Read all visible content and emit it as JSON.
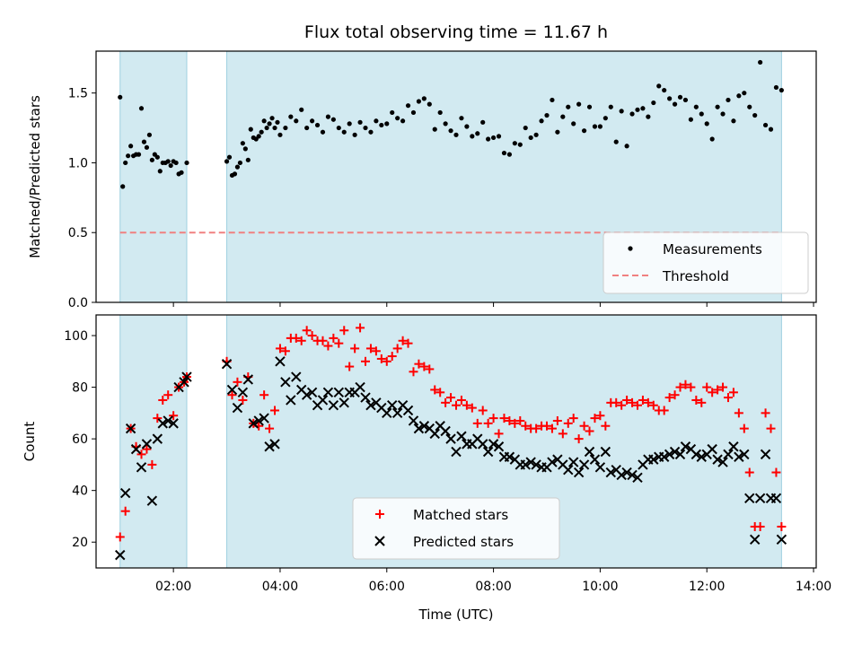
{
  "chart_data": [
    {
      "type": "scatter",
      "title": "Flux total observing time = 11.67 h",
      "ylabel": "Matched/Predicted stars",
      "xlabel": "",
      "ylim": [
        0,
        1.8
      ],
      "yticks": [
        "0.0",
        "0.5",
        "1.0",
        "1.5"
      ],
      "observing_windows": [
        [
          1.0,
          2.25
        ],
        [
          3.0,
          13.4
        ]
      ],
      "threshold": 0.5,
      "legend": {
        "placement": "lower-right",
        "entries": [
          "Measurements",
          "Threshold"
        ]
      },
      "series": [
        {
          "name": "Measurements",
          "x": [
            1.0,
            1.05,
            1.1,
            1.15,
            1.2,
            1.25,
            1.3,
            1.35,
            1.4,
            1.45,
            1.5,
            1.55,
            1.6,
            1.65,
            1.7,
            1.75,
            1.8,
            1.85,
            1.9,
            1.95,
            2.0,
            2.05,
            2.1,
            2.15,
            2.25,
            3.0,
            3.05,
            3.1,
            3.15,
            3.2,
            3.25,
            3.3,
            3.35,
            3.4,
            3.45,
            3.5,
            3.55,
            3.6,
            3.65,
            3.7,
            3.75,
            3.8,
            3.85,
            3.9,
            3.95,
            4.0,
            4.1,
            4.2,
            4.3,
            4.4,
            4.5,
            4.6,
            4.7,
            4.8,
            4.9,
            5.0,
            5.1,
            5.2,
            5.3,
            5.4,
            5.5,
            5.6,
            5.7,
            5.8,
            5.9,
            6.0,
            6.1,
            6.2,
            6.3,
            6.4,
            6.5,
            6.6,
            6.7,
            6.8,
            6.9,
            7.0,
            7.1,
            7.2,
            7.3,
            7.4,
            7.5,
            7.6,
            7.7,
            7.8,
            7.9,
            8.0,
            8.1,
            8.2,
            8.3,
            8.4,
            8.5,
            8.6,
            8.7,
            8.8,
            8.9,
            9.0,
            9.1,
            9.2,
            9.3,
            9.4,
            9.5,
            9.6,
            9.7,
            9.8,
            9.9,
            10.0,
            10.1,
            10.2,
            10.3,
            10.4,
            10.5,
            10.6,
            10.7,
            10.8,
            10.9,
            11.0,
            11.1,
            11.2,
            11.3,
            11.4,
            11.5,
            11.6,
            11.7,
            11.8,
            11.9,
            12.0,
            12.1,
            12.2,
            12.3,
            12.4,
            12.5,
            12.6,
            12.7,
            12.8,
            12.9,
            13.0,
            13.1,
            13.2,
            13.3,
            13.4
          ],
          "y": [
            1.47,
            0.83,
            1.0,
            1.05,
            1.12,
            1.05,
            1.06,
            1.06,
            1.39,
            1.15,
            1.11,
            1.2,
            1.02,
            1.06,
            1.04,
            0.94,
            1.0,
            1.0,
            1.01,
            0.98,
            1.01,
            1.0,
            0.92,
            0.93,
            1.0,
            1.01,
            1.04,
            0.91,
            0.92,
            0.97,
            1.0,
            1.14,
            1.1,
            1.02,
            1.24,
            1.18,
            1.17,
            1.19,
            1.22,
            1.3,
            1.25,
            1.28,
            1.32,
            1.25,
            1.29,
            1.2,
            1.25,
            1.33,
            1.3,
            1.38,
            1.25,
            1.3,
            1.27,
            1.22,
            1.33,
            1.31,
            1.25,
            1.22,
            1.28,
            1.2,
            1.29,
            1.25,
            1.22,
            1.3,
            1.27,
            1.28,
            1.36,
            1.32,
            1.3,
            1.41,
            1.36,
            1.44,
            1.46,
            1.42,
            1.24,
            1.36,
            1.28,
            1.23,
            1.2,
            1.32,
            1.26,
            1.19,
            1.21,
            1.29,
            1.17,
            1.18,
            1.19,
            1.07,
            1.06,
            1.14,
            1.13,
            1.25,
            1.18,
            1.2,
            1.3,
            1.34,
            1.45,
            1.22,
            1.33,
            1.4,
            1.28,
            1.42,
            1.23,
            1.4,
            1.26,
            1.26,
            1.32,
            1.4,
            1.15,
            1.37,
            1.12,
            1.35,
            1.38,
            1.39,
            1.33,
            1.43,
            1.55,
            1.52,
            1.46,
            1.42,
            1.47,
            1.45,
            1.31,
            1.4,
            1.35,
            1.28,
            1.17,
            1.4,
            1.35,
            1.45,
            1.3,
            1.48,
            1.5,
            1.4,
            1.34,
            1.72,
            1.27,
            1.24,
            1.54,
            1.52
          ],
          "marker": "dot",
          "color": "#000000"
        },
        {
          "name": "Threshold",
          "x": [
            1.0,
            13.4
          ],
          "y": [
            0.5,
            0.5
          ],
          "style": "dashed",
          "color": "#f08080"
        }
      ]
    },
    {
      "type": "scatter",
      "title": "",
      "xlabel": "Time (UTC)",
      "ylabel": "Count",
      "ylim": [
        10,
        108
      ],
      "yticks": [
        "20",
        "40",
        "60",
        "80",
        "100"
      ],
      "xlim": [
        0.55,
        14.05
      ],
      "xticks": [
        "02:00",
        "04:00",
        "06:00",
        "08:00",
        "10:00",
        "12:00",
        "14:00"
      ],
      "observing_windows": [
        [
          1.0,
          2.25
        ],
        [
          3.0,
          13.4
        ]
      ],
      "legend": {
        "placement": "lower-center",
        "entries": [
          "Matched stars",
          "Predicted stars"
        ]
      },
      "series": [
        {
          "name": "Matched stars",
          "marker": "plus",
          "color": "#ff0000",
          "x": [
            1.0,
            1.1,
            1.2,
            1.3,
            1.4,
            1.5,
            1.6,
            1.7,
            1.8,
            1.9,
            2.0,
            2.1,
            2.2,
            2.25,
            3.0,
            3.1,
            3.2,
            3.3,
            3.4,
            3.5,
            3.6,
            3.7,
            3.8,
            3.9,
            4.0,
            4.1,
            4.2,
            4.3,
            4.4,
            4.5,
            4.6,
            4.7,
            4.8,
            4.9,
            5.0,
            5.1,
            5.2,
            5.3,
            5.4,
            5.5,
            5.6,
            5.7,
            5.8,
            5.9,
            6.0,
            6.1,
            6.2,
            6.3,
            6.4,
            6.5,
            6.6,
            6.7,
            6.8,
            6.9,
            7.0,
            7.1,
            7.2,
            7.3,
            7.4,
            7.5,
            7.6,
            7.7,
            7.8,
            7.9,
            8.0,
            8.1,
            8.2,
            8.3,
            8.4,
            8.5,
            8.6,
            8.7,
            8.8,
            8.9,
            9.0,
            9.1,
            9.2,
            9.3,
            9.4,
            9.5,
            9.6,
            9.7,
            9.8,
            9.9,
            10.0,
            10.1,
            10.2,
            10.3,
            10.4,
            10.5,
            10.6,
            10.7,
            10.8,
            10.9,
            11.0,
            11.1,
            11.2,
            11.3,
            11.4,
            11.5,
            11.6,
            11.7,
            11.8,
            11.9,
            12.0,
            12.1,
            12.2,
            12.3,
            12.4,
            12.5,
            12.6,
            12.7,
            12.8,
            12.9,
            13.0,
            13.1,
            13.2,
            13.3,
            13.4
          ],
          "y": [
            22,
            32,
            64,
            57,
            54,
            56,
            50,
            68,
            75,
            77,
            69,
            80,
            82,
            84,
            90,
            77,
            82,
            75,
            84,
            66,
            65,
            77,
            64,
            71,
            95,
            94,
            99,
            99,
            98,
            102,
            100,
            98,
            98,
            96,
            99,
            97,
            102,
            88,
            95,
            103,
            90,
            95,
            94,
            91,
            90,
            92,
            95,
            98,
            97,
            86,
            89,
            88,
            87,
            79,
            78,
            74,
            76,
            73,
            75,
            73,
            72,
            66,
            71,
            66,
            68,
            62,
            68,
            67,
            66,
            67,
            65,
            64,
            64,
            65,
            65,
            64,
            67,
            62,
            66,
            68,
            60,
            65,
            63,
            68,
            69,
            65,
            74,
            74,
            73,
            75,
            74,
            73,
            75,
            74,
            73,
            71,
            71,
            76,
            77,
            80,
            81,
            80,
            75,
            74,
            80,
            78,
            79,
            80,
            76,
            78,
            70,
            64,
            47,
            26,
            26,
            70,
            64,
            47,
            26
          ],
          "note": ""
        },
        {
          "name": "Predicted stars",
          "marker": "x",
          "color": "#000000",
          "x": [
            1.0,
            1.1,
            1.2,
            1.3,
            1.4,
            1.5,
            1.6,
            1.7,
            1.8,
            1.9,
            2.0,
            2.1,
            2.2,
            2.25,
            3.0,
            3.1,
            3.2,
            3.3,
            3.4,
            3.5,
            3.6,
            3.7,
            3.8,
            3.9,
            4.0,
            4.1,
            4.2,
            4.3,
            4.4,
            4.5,
            4.6,
            4.7,
            4.8,
            4.9,
            5.0,
            5.1,
            5.2,
            5.3,
            5.4,
            5.5,
            5.6,
            5.7,
            5.8,
            5.9,
            6.0,
            6.1,
            6.2,
            6.3,
            6.4,
            6.5,
            6.6,
            6.7,
            6.8,
            6.9,
            7.0,
            7.1,
            7.2,
            7.3,
            7.4,
            7.5,
            7.6,
            7.7,
            7.8,
            7.9,
            8.0,
            8.1,
            8.2,
            8.3,
            8.4,
            8.5,
            8.6,
            8.7,
            8.8,
            8.9,
            9.0,
            9.1,
            9.2,
            9.3,
            9.4,
            9.5,
            9.6,
            9.7,
            9.8,
            9.9,
            10.0,
            10.1,
            10.2,
            10.3,
            10.4,
            10.5,
            10.6,
            10.7,
            10.8,
            10.9,
            11.0,
            11.1,
            11.2,
            11.3,
            11.4,
            11.5,
            11.6,
            11.7,
            11.8,
            11.9,
            12.0,
            12.1,
            12.2,
            12.3,
            12.4,
            12.5,
            12.6,
            12.7,
            12.8,
            12.9,
            13.0,
            13.1,
            13.2,
            13.3,
            13.4
          ],
          "y": [
            15,
            39,
            64,
            56,
            49,
            58,
            36,
            60,
            66,
            67,
            66,
            80,
            82,
            84,
            89,
            79,
            72,
            78,
            83,
            66,
            67,
            68,
            57,
            58,
            90,
            82,
            75,
            84,
            79,
            77,
            78,
            73,
            75,
            78,
            73,
            78,
            74,
            78,
            78,
            80,
            76,
            73,
            74,
            72,
            70,
            73,
            70,
            73,
            71,
            67,
            64,
            65,
            64,
            62,
            65,
            63,
            60,
            55,
            61,
            58,
            58,
            60,
            58,
            55,
            58,
            57,
            53,
            53,
            52,
            50,
            50,
            51,
            50,
            49,
            49,
            51,
            52,
            50,
            48,
            51,
            47,
            50,
            55,
            52,
            49,
            55,
            47,
            48,
            46,
            47,
            46,
            45,
            50,
            52,
            52,
            53,
            53,
            54,
            55,
            54,
            57,
            56,
            54,
            53,
            54,
            56,
            52,
            51,
            54,
            57,
            53,
            54,
            37,
            21,
            37,
            54,
            37,
            37,
            21
          ]
        }
      ]
    }
  ]
}
